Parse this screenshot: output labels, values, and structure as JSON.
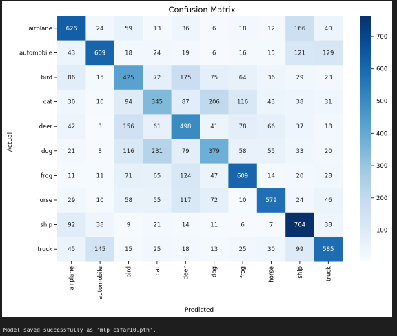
{
  "chart_data": {
    "type": "heatmap",
    "title": "Confusion Matrix",
    "xlabel": "Predicted",
    "ylabel": "Actual",
    "x_categories": [
      "airplane",
      "automobile",
      "bird",
      "cat",
      "deer",
      "dog",
      "frog",
      "horse",
      "ship",
      "truck"
    ],
    "y_categories": [
      "airplane",
      "automobile",
      "bird",
      "cat",
      "deer",
      "dog",
      "frog",
      "horse",
      "ship",
      "truck"
    ],
    "values": [
      [
        626,
        24,
        59,
        13,
        36,
        6,
        18,
        12,
        166,
        40
      ],
      [
        43,
        609,
        18,
        24,
        19,
        6,
        16,
        15,
        121,
        129
      ],
      [
        86,
        15,
        425,
        72,
        175,
        75,
        64,
        36,
        29,
        23
      ],
      [
        30,
        10,
        94,
        345,
        87,
        206,
        116,
        43,
        38,
        31
      ],
      [
        42,
        3,
        156,
        61,
        498,
        41,
        78,
        66,
        37,
        18
      ],
      [
        21,
        8,
        116,
        231,
        79,
        379,
        58,
        55,
        33,
        20
      ],
      [
        11,
        11,
        71,
        65,
        124,
        47,
        609,
        14,
        20,
        28
      ],
      [
        29,
        10,
        58,
        55,
        117,
        72,
        10,
        579,
        24,
        46
      ],
      [
        92,
        38,
        9,
        21,
        14,
        11,
        6,
        7,
        764,
        38
      ],
      [
        45,
        145,
        15,
        25,
        18,
        13,
        25,
        30,
        99,
        585
      ]
    ],
    "colormap": "Blues",
    "vmin": 3,
    "vmax": 764,
    "colorbar_ticks": [
      100,
      200,
      300,
      400,
      500,
      600,
      700
    ],
    "annotations": true,
    "grid": false
  },
  "console": {
    "message": "Model saved successfully as 'mlp_cifar10.pth'."
  }
}
